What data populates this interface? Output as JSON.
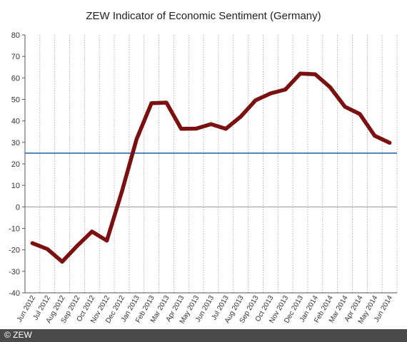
{
  "chart_data": {
    "type": "line",
    "title": "ZEW Indicator of Economic Sentiment (Germany)",
    "categories": [
      "Jun 2012",
      "Jul 2012",
      "Aug 2012",
      "Sep 2012",
      "Oct 2012",
      "Nov 2012",
      "Dec 2012",
      "Jan 2013",
      "Feb 2013",
      "Mar 2013",
      "Apr 2013",
      "May 2013",
      "Jun 2013",
      "Jul 2013",
      "Aug 2013",
      "Sep 2013",
      "Oct 2013",
      "Nov 2013",
      "Dec 2013",
      "Jan 2014",
      "Feb 2014",
      "Mar 2014",
      "Apr 2014",
      "May 2014",
      "Jun 2014"
    ],
    "series": [
      {
        "values": [
          -16.9,
          -19.6,
          -25.5,
          -18.2,
          -11.5,
          -15.7,
          6.9,
          31.5,
          48.2,
          48.5,
          36.3,
          36.4,
          38.5,
          36.3,
          42.0,
          49.6,
          52.8,
          54.6,
          62.0,
          61.7,
          55.7,
          46.6,
          43.2,
          33.1,
          29.8
        ],
        "color": "#7a1010"
      }
    ],
    "reference_line": {
      "value": 25,
      "color": "#2a6db5"
    },
    "ylim": [
      -40,
      80
    ],
    "yticks": [
      80,
      70,
      60,
      50,
      40,
      30,
      20,
      10,
      0,
      -10,
      -20,
      -30,
      -40
    ],
    "grid": "vertical dotted",
    "xlabel": "",
    "ylabel": ""
  },
  "footer": {
    "copyright": "© ZEW"
  }
}
